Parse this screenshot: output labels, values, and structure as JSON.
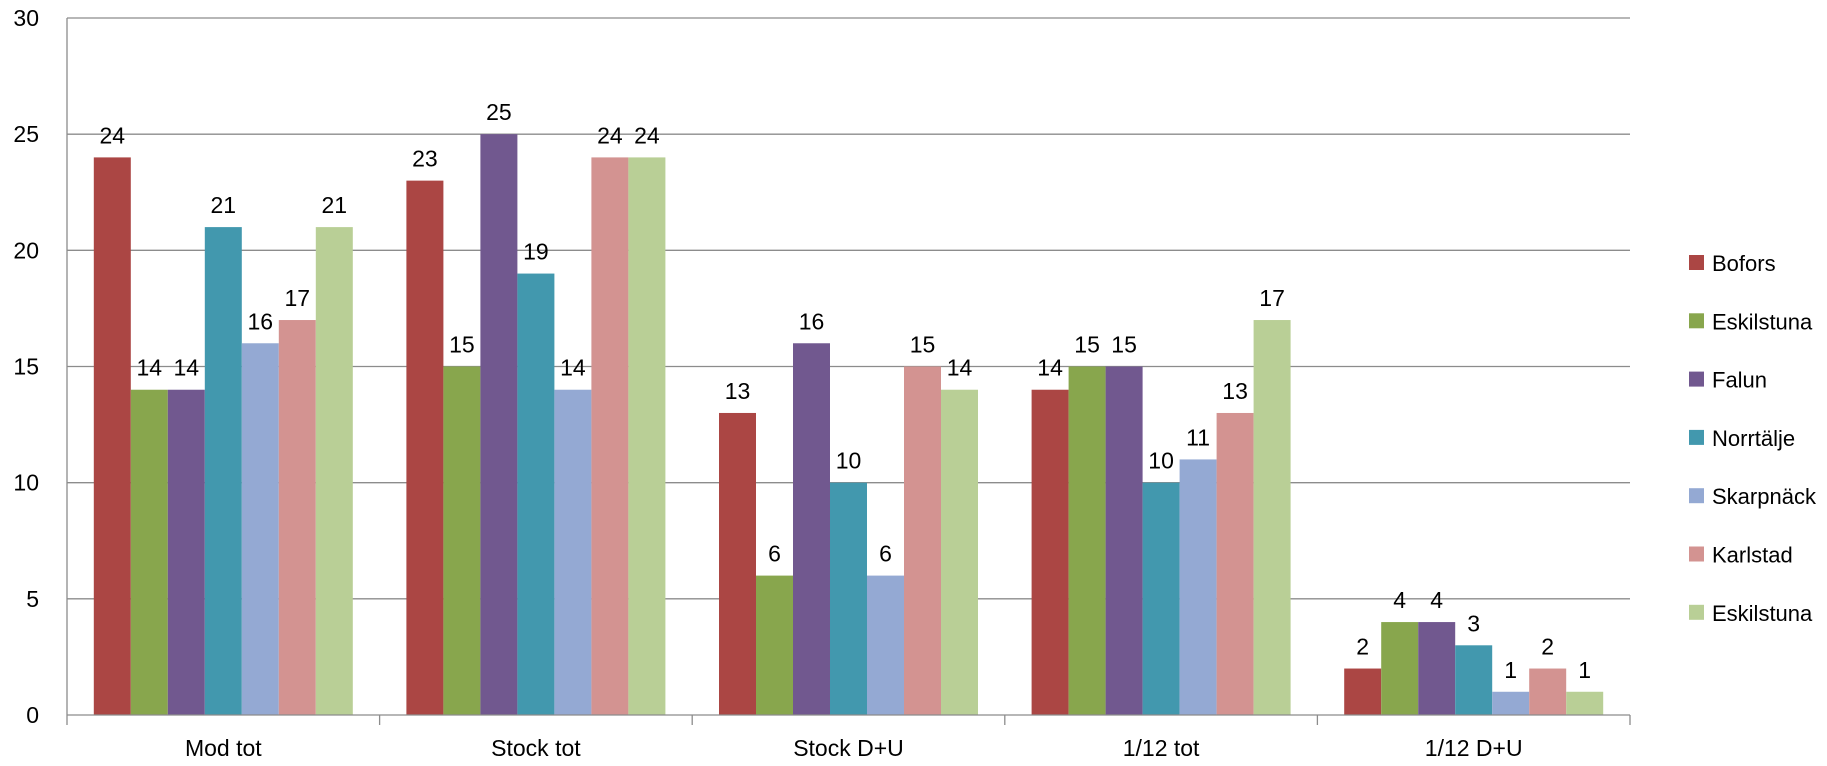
{
  "chart_data": {
    "type": "bar",
    "title": "",
    "xlabel": "",
    "ylabel": "",
    "ylim": [
      0,
      30
    ],
    "yticks": [
      0,
      5,
      10,
      15,
      20,
      25,
      30
    ],
    "grid": true,
    "legend_position": "right",
    "categories": [
      "Mod tot",
      "Stock tot",
      "Stock D+U",
      "1/12 tot",
      "1/12 D+U"
    ],
    "series": [
      {
        "name": "Bofors",
        "color": "#ab4644",
        "values": [
          24,
          23,
          13,
          14,
          2
        ]
      },
      {
        "name": "Eskilstuna",
        "color": "#88a64d",
        "values": [
          14,
          15,
          6,
          15,
          4
        ]
      },
      {
        "name": "Falun",
        "color": "#71588f",
        "values": [
          14,
          25,
          16,
          15,
          4
        ]
      },
      {
        "name": "Norrtälje",
        "color": "#4298ae",
        "values": [
          21,
          19,
          10,
          10,
          3
        ]
      },
      {
        "name": "Skarpnäck",
        "color": "#94a9d3",
        "values": [
          16,
          14,
          6,
          11,
          1
        ]
      },
      {
        "name": "Karlstad",
        "color": "#d39391",
        "values": [
          17,
          24,
          15,
          13,
          2
        ]
      },
      {
        "name": "Eskilstuna",
        "color": "#b9cf96",
        "values": [
          21,
          24,
          14,
          17,
          1
        ]
      }
    ]
  }
}
